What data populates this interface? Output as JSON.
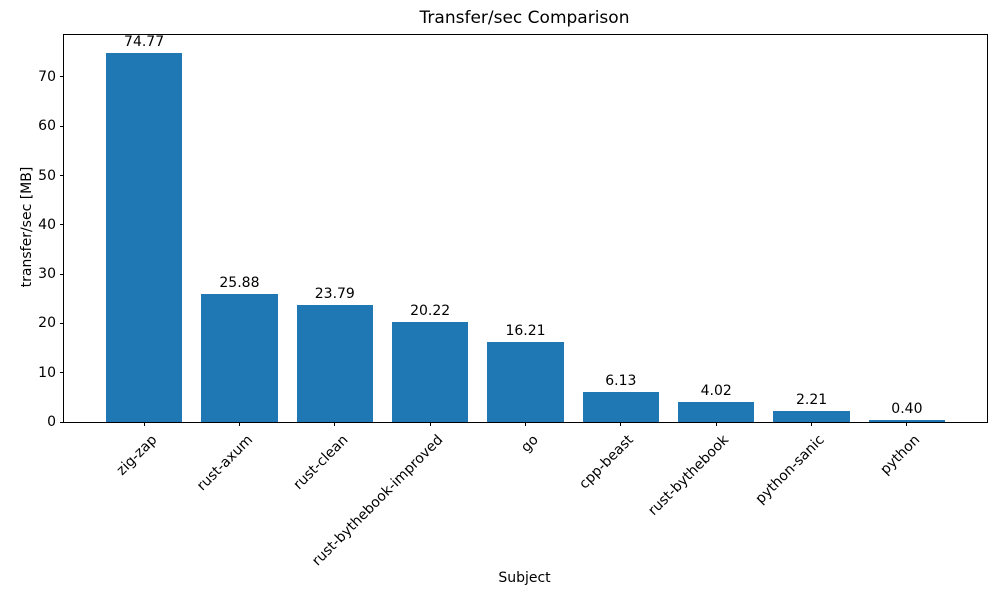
{
  "chart_data": {
    "type": "bar",
    "title": "Transfer/sec Comparison",
    "xlabel": "Subject",
    "ylabel": "transfer/sec [MB]",
    "categories": [
      "zig-zap",
      "rust-axum",
      "rust-clean",
      "rust-bythebook-improved",
      "go",
      "cpp-beast",
      "rust-bythebook",
      "python-sanic",
      "python"
    ],
    "values": [
      74.77,
      25.88,
      23.79,
      20.22,
      16.21,
      6.13,
      4.02,
      2.21,
      0.4
    ],
    "value_labels": [
      "74.77",
      "25.88",
      "23.79",
      "20.22",
      "16.21",
      "6.13",
      "4.02",
      "2.21",
      "0.40"
    ],
    "yticks": [
      0,
      10,
      20,
      30,
      40,
      50,
      60,
      70
    ],
    "ylim": [
      0,
      78.5
    ],
    "bar_color": "#1f77b4",
    "axis_color": "#000000",
    "grid": false,
    "legend_position": "none",
    "x_tick_rotation_deg": 45
  }
}
